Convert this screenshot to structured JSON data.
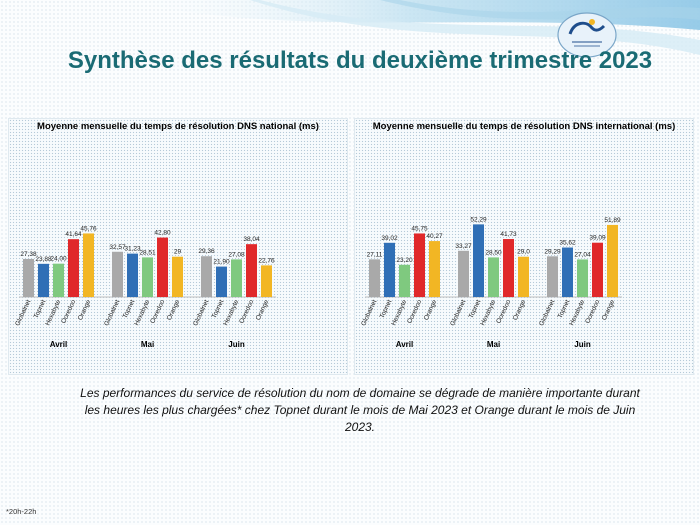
{
  "slide": {
    "title": "Synthèse des résultats du deuxième trimestre 2023",
    "summary": "Les performances du service de résolution du nom de domaine se dégrade de manière importante durant les heures les plus chargées* chez Topnet durant le mois de Mai 2023 et Orange durant le mois de Juin 2023.",
    "footnote": "*20h-22h"
  },
  "colors": {
    "Globalnet": "#a9a9a9",
    "Topnet": "#2f6fb6",
    "Hexabyte": "#7fc97f",
    "Ooredoo": "#e0282a",
    "Orange": "#f2b624",
    "title": "#1a6b74"
  },
  "icons": {
    "logo": "logo-icon"
  },
  "chart_data": [
    {
      "type": "bar",
      "title": "Moyenne mensuelle du temps de résolution DNS national (ms)",
      "groups": [
        "Avril",
        "Mai",
        "Juin"
      ],
      "categories": [
        "Globalnet",
        "Topnet",
        "Hexabyte",
        "Ooredoo",
        "Orange"
      ],
      "series": [
        {
          "group": "Avril",
          "values": [
            27.38,
            23.88,
            24.0,
            41.64,
            45.76
          ],
          "labels": [
            "27,38",
            "23,88",
            "24,00",
            "41,64",
            "45,76"
          ]
        },
        {
          "group": "Mai",
          "values": [
            32.57,
            31.23,
            28.51,
            42.8,
            29
          ],
          "labels": [
            "32,57",
            "31,23",
            "28,51",
            "42,80",
            "29"
          ]
        },
        {
          "group": "Juin",
          "values": [
            29.36,
            21.9,
            27.08,
            38.04,
            22.76
          ],
          "labels": [
            "29,36",
            "21,90",
            "27,08",
            "38,04",
            "22,76"
          ]
        }
      ],
      "grid": false
    },
    {
      "type": "bar",
      "title": "Moyenne mensuelle du temps de résolution DNS international (ms)",
      "groups": [
        "Avril",
        "Mai",
        "Juin"
      ],
      "categories": [
        "Globalnet",
        "Topnet",
        "Hexabyte",
        "Ooredoo",
        "Orange"
      ],
      "series": [
        {
          "group": "Avril",
          "values": [
            27.11,
            39.02,
            23.2,
            45.75,
            40.27
          ],
          "labels": [
            "27,11",
            "39,02",
            "23,20",
            "45,75",
            "40,27"
          ]
        },
        {
          "group": "Mai",
          "values": [
            33.27,
            52.29,
            28.5,
            41.73,
            29.0
          ],
          "labels": [
            "33,27",
            "52,29",
            "28,50",
            "41,73",
            "29,0"
          ]
        },
        {
          "group": "Juin",
          "values": [
            29.29,
            35.62,
            27.04,
            39.09,
            51.89
          ],
          "labels": [
            "29,29",
            "35,62",
            "27,04",
            "39,09",
            "51,89"
          ]
        }
      ],
      "grid": false
    }
  ]
}
